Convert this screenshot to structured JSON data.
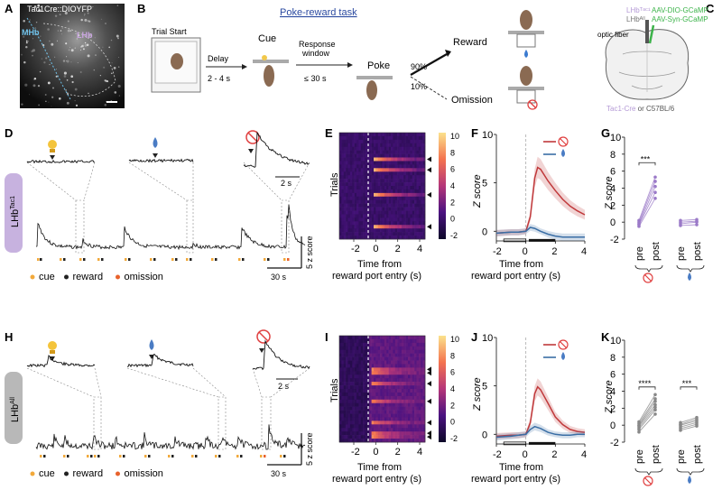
{
  "panels": {
    "a": "A",
    "b": "B",
    "c": "C",
    "d": "D",
    "e": "E",
    "f": "F",
    "g": "G",
    "h": "H",
    "i": "I",
    "j": "J",
    "k": "K"
  },
  "panelA": {
    "title": "Tac1Cre::DIOYFP",
    "mhb": "MHb",
    "lhb": "LHb",
    "colors": {
      "mhb": "#6fc0e8",
      "lhb": "#c9a4e0"
    }
  },
  "panelB": {
    "task_title": "Poke-reward task",
    "trial_start": "Trial Start",
    "delay": "Delay",
    "delay_range": "2 - 4 s",
    "cue": "Cue",
    "response_window_1": "Response",
    "response_window_2": "window",
    "response_time": "≤ 30 s",
    "poke": "Poke",
    "reward_pct": "90%",
    "reward": "Reward",
    "omission_pct": "10%",
    "omission": "Omission"
  },
  "panelC": {
    "optic_fiber": "optic fiber",
    "lhb_tac1": "LHbᵀᵃᶜ¹",
    "lhb_all": "LHbᴬˡˡ",
    "virus_dio": "AAV-DIO-GCaMP",
    "virus_syn": "AAV-Syn-GCaMP",
    "strains_a": "Tac1-Cre",
    "strains_or": " or ",
    "strains_b": "C57BL/6",
    "colors": {
      "green": "#3cb34a",
      "purple": "#b49ad6"
    }
  },
  "traceTac1": {
    "side_label": "LHb",
    "side_sup": "Tac1",
    "inset_scale": "2 s",
    "scale_x": "30 s",
    "scale_y": "5 z score",
    "legend": [
      {
        "label": "cue",
        "color": "#f2a93b"
      },
      {
        "label": "reward",
        "color": "#222222"
      },
      {
        "label": "omission",
        "color": "#e8622c"
      }
    ]
  },
  "traceAll": {
    "side_label": "LHb",
    "side_sup": "All",
    "inset_scale": "2 s",
    "scale_x": "30 s",
    "scale_y": "5 z score",
    "legend": [
      {
        "label": "cue",
        "color": "#f2a93b"
      },
      {
        "label": "reward",
        "color": "#222222"
      },
      {
        "label": "omission",
        "color": "#e8622c"
      }
    ]
  },
  "heatmapE": {
    "ylabel": "Trials",
    "xlabel_1": "Time from",
    "xlabel_2": "reward port entry (s)",
    "xticks": [
      "-2",
      "0",
      "2",
      "4"
    ],
    "cbar_ticks": [
      "10",
      "8",
      "6",
      "4",
      "2",
      "0",
      "-2"
    ],
    "cbar_range": [
      -2,
      10
    ],
    "arrows": 4
  },
  "heatmapI": {
    "ylabel": "Trials",
    "xlabel_1": "Time from",
    "xlabel_2": "reward port entry (s)",
    "xticks": [
      "-2",
      "0",
      "2",
      "4"
    ],
    "cbar_ticks": [
      "10",
      "8",
      "6",
      "4",
      "2",
      "0",
      "-2"
    ],
    "cbar_range": [
      -2,
      10
    ],
    "arrows": 7
  },
  "chart_data": [
    {
      "panel": "F",
      "type": "line",
      "xlabel_1": "Time from",
      "xlabel_2": "reward port entry (s)",
      "ylabel": "Z score",
      "xlim": [
        -2,
        4
      ],
      "ylim": [
        -1,
        10
      ],
      "xticks": [
        "-2",
        "0",
        "2",
        "4"
      ],
      "yticks": [
        "10",
        "5",
        "0"
      ],
      "series": [
        {
          "color": "#c0393b",
          "x": [
            -2,
            -1,
            -0.5,
            0,
            0.3,
            0.6,
            0.8,
            1,
            1.5,
            2,
            2.5,
            3,
            3.5,
            4
          ],
          "y": [
            -0.2,
            -0.1,
            -0.1,
            0,
            1.5,
            5.5,
            6.6,
            6.4,
            5.2,
            4.2,
            3.3,
            2.6,
            2.1,
            1.7
          ]
        },
        {
          "color": "#3a6ea5",
          "x": [
            -2,
            -1,
            -0.5,
            0,
            0.3,
            0.6,
            1,
            1.5,
            2,
            2.5,
            3,
            3.5,
            4
          ],
          "y": [
            -0.2,
            -0.1,
            -0.1,
            0,
            0.4,
            0.3,
            0,
            -0.3,
            -0.5,
            -0.6,
            -0.6,
            -0.6,
            -0.6
          ]
        }
      ]
    },
    {
      "panel": "G",
      "type": "scatter",
      "ylabel": "Z score",
      "ylim": [
        -2,
        10
      ],
      "yticks": [
        "10",
        "8",
        "6",
        "4",
        "2",
        "0",
        "-2"
      ],
      "categories": [
        "pre",
        "post",
        "pre",
        "post"
      ],
      "significance": "***",
      "groups": [
        {
          "color": "#9b7ac8",
          "pre": [
            -0.5,
            -0.3,
            -0.2,
            0,
            0.2
          ],
          "post": [
            2.8,
            3.5,
            4.2,
            4.8,
            5.3
          ]
        },
        {
          "color": "#9b7ac8",
          "pre": [
            -0.4,
            -0.2,
            0,
            0.2
          ],
          "post": [
            -0.3,
            0,
            0.1,
            0.3
          ]
        }
      ]
    },
    {
      "panel": "J",
      "type": "line",
      "xlabel_1": "Time from",
      "xlabel_2": "reward port entry (s)",
      "ylabel": "Z score",
      "xlim": [
        -2,
        4
      ],
      "ylim": [
        -1,
        10
      ],
      "xticks": [
        "-2",
        "0",
        "2",
        "4"
      ],
      "yticks": [
        "10",
        "5",
        "0"
      ],
      "series": [
        {
          "color": "#c0393b",
          "x": [
            -2,
            -1,
            -0.5,
            0,
            0.3,
            0.6,
            0.8,
            1,
            1.5,
            2,
            2.5,
            3,
            3.5,
            4
          ],
          "y": [
            -0.2,
            -0.1,
            -0.1,
            0,
            1.2,
            4.2,
            4.9,
            4.6,
            3.2,
            1.8,
            1.0,
            0.5,
            0.3,
            0.2
          ]
        },
        {
          "color": "#3a6ea5",
          "x": [
            -2,
            -1,
            -0.5,
            0,
            0.3,
            0.6,
            1,
            1.5,
            2,
            2.5,
            3,
            3.5,
            4
          ],
          "y": [
            -0.3,
            -0.2,
            -0.1,
            0,
            0.5,
            0.8,
            0.6,
            0.2,
            0,
            -0.1,
            -0.1,
            0,
            0
          ]
        }
      ]
    },
    {
      "panel": "K",
      "type": "scatter",
      "ylabel": "Z score",
      "ylim": [
        -2,
        10
      ],
      "yticks": [
        "10",
        "8",
        "6",
        "4",
        "2",
        "0",
        "-2"
      ],
      "categories": [
        "pre",
        "post",
        "pre",
        "post"
      ],
      "significance_1": "****",
      "significance_2": "***",
      "groups": [
        {
          "color": "#888888",
          "pre": [
            -0.8,
            -0.5,
            -0.3,
            -0.1,
            0,
            0.2,
            0.4
          ],
          "post": [
            1.3,
            1.8,
            2.1,
            2.4,
            2.8,
            3.1,
            3.6
          ]
        },
        {
          "color": "#888888",
          "pre": [
            -0.6,
            -0.4,
            -0.2,
            0,
            0.1,
            0.3
          ],
          "post": [
            -0.1,
            0.1,
            0.3,
            0.5,
            0.7,
            0.9
          ]
        }
      ]
    }
  ]
}
